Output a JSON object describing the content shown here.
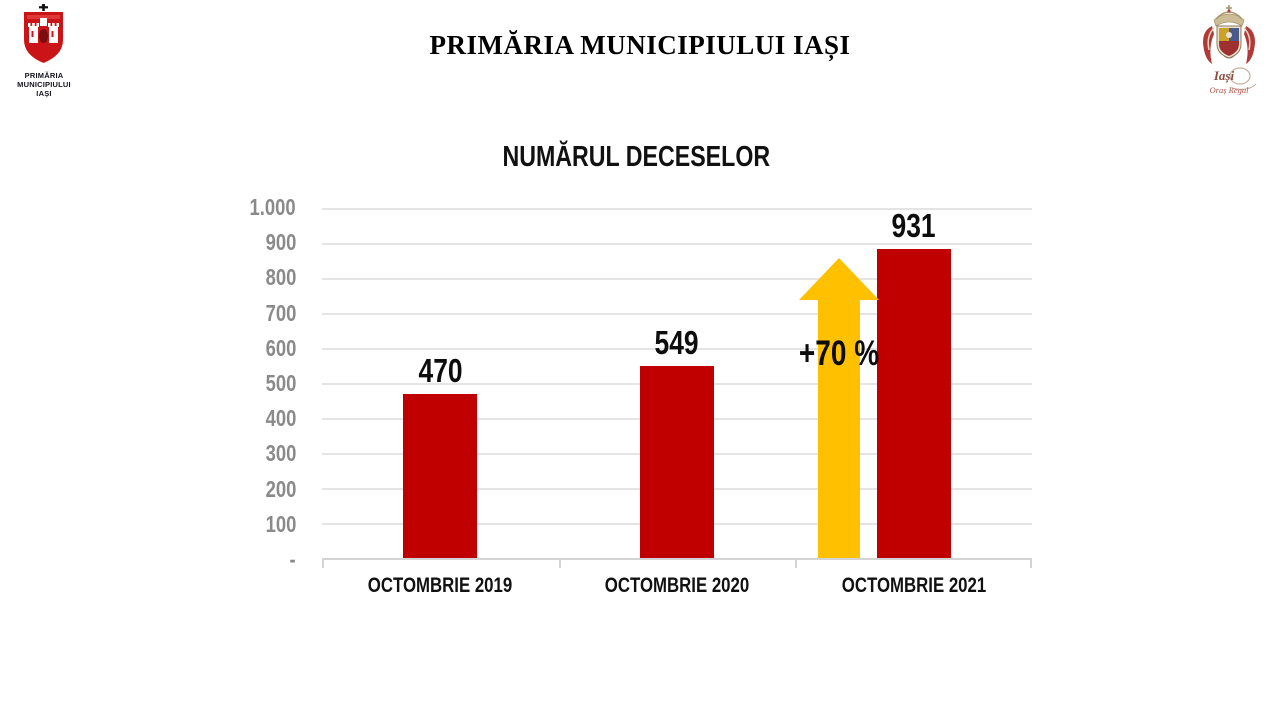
{
  "slide": {
    "title": "PRIMĂRIA MUNICIPIULUI IAȘI"
  },
  "logos": {
    "left": {
      "caption_lines": [
        "PRIMĂRIA",
        "MUNICIPIULUI",
        "IAȘI"
      ]
    },
    "right": {
      "script_line1": "Iași",
      "script_line2": "Oraș Regal"
    }
  },
  "chart_data": {
    "type": "bar",
    "title": "NUMĂRUL DECESELOR",
    "categories": [
      "OCTOMBRIE 2019",
      "OCTOMBRIE 2020",
      "OCTOMBRIE 2021"
    ],
    "values": [
      470,
      549,
      931
    ],
    "ylim": [
      0,
      1000
    ],
    "ytick_step": 100,
    "ytick_labels": [
      "1.000",
      "900",
      "800",
      "700",
      "600",
      "500",
      "400",
      "300",
      "200",
      "100",
      "-"
    ],
    "grid": true,
    "legend": false,
    "annotation": {
      "text": "+70 %",
      "shape": "up-arrow",
      "refers_to": "OCTOMBRIE 2021 vs OCTOMBRIE 2020"
    }
  },
  "colors": {
    "bar_red": "#C00000",
    "arrow_gold": "#FFC000",
    "gridline": "#E4E4E4",
    "axis_line": "#D4D4D4",
    "ytick_text": "#8A8A8A",
    "text_black": "#0D0D0D"
  }
}
